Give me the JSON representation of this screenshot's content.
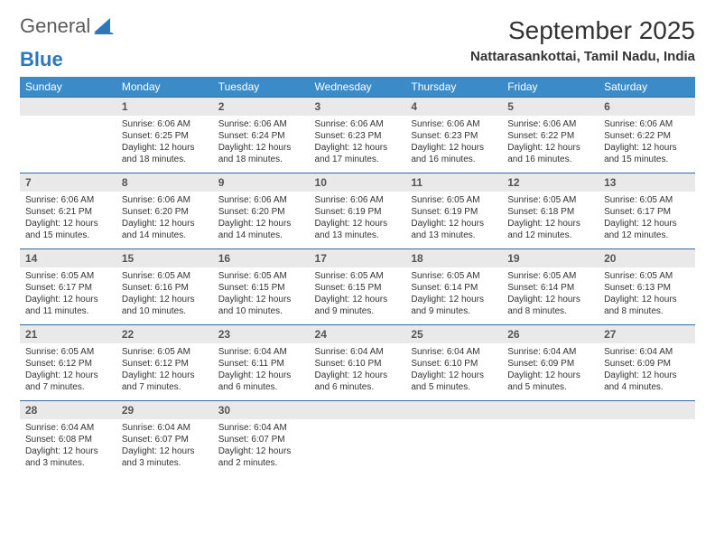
{
  "logo": {
    "word1": "General",
    "word2": "Blue"
  },
  "title": "September 2025",
  "location": "Nattarasankottai, Tamil Nadu, India",
  "colors": {
    "header_bg": "#3b8bc8",
    "header_text": "#ffffff",
    "daynum_bg": "#e9e9e9",
    "row_border": "#2f6aa0",
    "logo_gray": "#5c5c5c",
    "logo_blue": "#2f77bb",
    "body_text": "#333333",
    "page_bg": "#ffffff"
  },
  "typography": {
    "title_fontsize": 28,
    "location_fontsize": 15,
    "weekday_fontsize": 12,
    "daynum_fontsize": 12,
    "body_fontsize": 10,
    "font_family": "Arial"
  },
  "weekdays": [
    "Sunday",
    "Monday",
    "Tuesday",
    "Wednesday",
    "Thursday",
    "Friday",
    "Saturday"
  ],
  "weeks": [
    [
      null,
      {
        "n": "1",
        "sr": "Sunrise: 6:06 AM",
        "ss": "Sunset: 6:25 PM",
        "d1": "Daylight: 12 hours",
        "d2": "and 18 minutes."
      },
      {
        "n": "2",
        "sr": "Sunrise: 6:06 AM",
        "ss": "Sunset: 6:24 PM",
        "d1": "Daylight: 12 hours",
        "d2": "and 18 minutes."
      },
      {
        "n": "3",
        "sr": "Sunrise: 6:06 AM",
        "ss": "Sunset: 6:23 PM",
        "d1": "Daylight: 12 hours",
        "d2": "and 17 minutes."
      },
      {
        "n": "4",
        "sr": "Sunrise: 6:06 AM",
        "ss": "Sunset: 6:23 PM",
        "d1": "Daylight: 12 hours",
        "d2": "and 16 minutes."
      },
      {
        "n": "5",
        "sr": "Sunrise: 6:06 AM",
        "ss": "Sunset: 6:22 PM",
        "d1": "Daylight: 12 hours",
        "d2": "and 16 minutes."
      },
      {
        "n": "6",
        "sr": "Sunrise: 6:06 AM",
        "ss": "Sunset: 6:22 PM",
        "d1": "Daylight: 12 hours",
        "d2": "and 15 minutes."
      }
    ],
    [
      {
        "n": "7",
        "sr": "Sunrise: 6:06 AM",
        "ss": "Sunset: 6:21 PM",
        "d1": "Daylight: 12 hours",
        "d2": "and 15 minutes."
      },
      {
        "n": "8",
        "sr": "Sunrise: 6:06 AM",
        "ss": "Sunset: 6:20 PM",
        "d1": "Daylight: 12 hours",
        "d2": "and 14 minutes."
      },
      {
        "n": "9",
        "sr": "Sunrise: 6:06 AM",
        "ss": "Sunset: 6:20 PM",
        "d1": "Daylight: 12 hours",
        "d2": "and 14 minutes."
      },
      {
        "n": "10",
        "sr": "Sunrise: 6:06 AM",
        "ss": "Sunset: 6:19 PM",
        "d1": "Daylight: 12 hours",
        "d2": "and 13 minutes."
      },
      {
        "n": "11",
        "sr": "Sunrise: 6:05 AM",
        "ss": "Sunset: 6:19 PM",
        "d1": "Daylight: 12 hours",
        "d2": "and 13 minutes."
      },
      {
        "n": "12",
        "sr": "Sunrise: 6:05 AM",
        "ss": "Sunset: 6:18 PM",
        "d1": "Daylight: 12 hours",
        "d2": "and 12 minutes."
      },
      {
        "n": "13",
        "sr": "Sunrise: 6:05 AM",
        "ss": "Sunset: 6:17 PM",
        "d1": "Daylight: 12 hours",
        "d2": "and 12 minutes."
      }
    ],
    [
      {
        "n": "14",
        "sr": "Sunrise: 6:05 AM",
        "ss": "Sunset: 6:17 PM",
        "d1": "Daylight: 12 hours",
        "d2": "and 11 minutes."
      },
      {
        "n": "15",
        "sr": "Sunrise: 6:05 AM",
        "ss": "Sunset: 6:16 PM",
        "d1": "Daylight: 12 hours",
        "d2": "and 10 minutes."
      },
      {
        "n": "16",
        "sr": "Sunrise: 6:05 AM",
        "ss": "Sunset: 6:15 PM",
        "d1": "Daylight: 12 hours",
        "d2": "and 10 minutes."
      },
      {
        "n": "17",
        "sr": "Sunrise: 6:05 AM",
        "ss": "Sunset: 6:15 PM",
        "d1": "Daylight: 12 hours",
        "d2": "and 9 minutes."
      },
      {
        "n": "18",
        "sr": "Sunrise: 6:05 AM",
        "ss": "Sunset: 6:14 PM",
        "d1": "Daylight: 12 hours",
        "d2": "and 9 minutes."
      },
      {
        "n": "19",
        "sr": "Sunrise: 6:05 AM",
        "ss": "Sunset: 6:14 PM",
        "d1": "Daylight: 12 hours",
        "d2": "and 8 minutes."
      },
      {
        "n": "20",
        "sr": "Sunrise: 6:05 AM",
        "ss": "Sunset: 6:13 PM",
        "d1": "Daylight: 12 hours",
        "d2": "and 8 minutes."
      }
    ],
    [
      {
        "n": "21",
        "sr": "Sunrise: 6:05 AM",
        "ss": "Sunset: 6:12 PM",
        "d1": "Daylight: 12 hours",
        "d2": "and 7 minutes."
      },
      {
        "n": "22",
        "sr": "Sunrise: 6:05 AM",
        "ss": "Sunset: 6:12 PM",
        "d1": "Daylight: 12 hours",
        "d2": "and 7 minutes."
      },
      {
        "n": "23",
        "sr": "Sunrise: 6:04 AM",
        "ss": "Sunset: 6:11 PM",
        "d1": "Daylight: 12 hours",
        "d2": "and 6 minutes."
      },
      {
        "n": "24",
        "sr": "Sunrise: 6:04 AM",
        "ss": "Sunset: 6:10 PM",
        "d1": "Daylight: 12 hours",
        "d2": "and 6 minutes."
      },
      {
        "n": "25",
        "sr": "Sunrise: 6:04 AM",
        "ss": "Sunset: 6:10 PM",
        "d1": "Daylight: 12 hours",
        "d2": "and 5 minutes."
      },
      {
        "n": "26",
        "sr": "Sunrise: 6:04 AM",
        "ss": "Sunset: 6:09 PM",
        "d1": "Daylight: 12 hours",
        "d2": "and 5 minutes."
      },
      {
        "n": "27",
        "sr": "Sunrise: 6:04 AM",
        "ss": "Sunset: 6:09 PM",
        "d1": "Daylight: 12 hours",
        "d2": "and 4 minutes."
      }
    ],
    [
      {
        "n": "28",
        "sr": "Sunrise: 6:04 AM",
        "ss": "Sunset: 6:08 PM",
        "d1": "Daylight: 12 hours",
        "d2": "and 3 minutes."
      },
      {
        "n": "29",
        "sr": "Sunrise: 6:04 AM",
        "ss": "Sunset: 6:07 PM",
        "d1": "Daylight: 12 hours",
        "d2": "and 3 minutes."
      },
      {
        "n": "30",
        "sr": "Sunrise: 6:04 AM",
        "ss": "Sunset: 6:07 PM",
        "d1": "Daylight: 12 hours",
        "d2": "and 2 minutes."
      },
      null,
      null,
      null,
      null
    ]
  ]
}
